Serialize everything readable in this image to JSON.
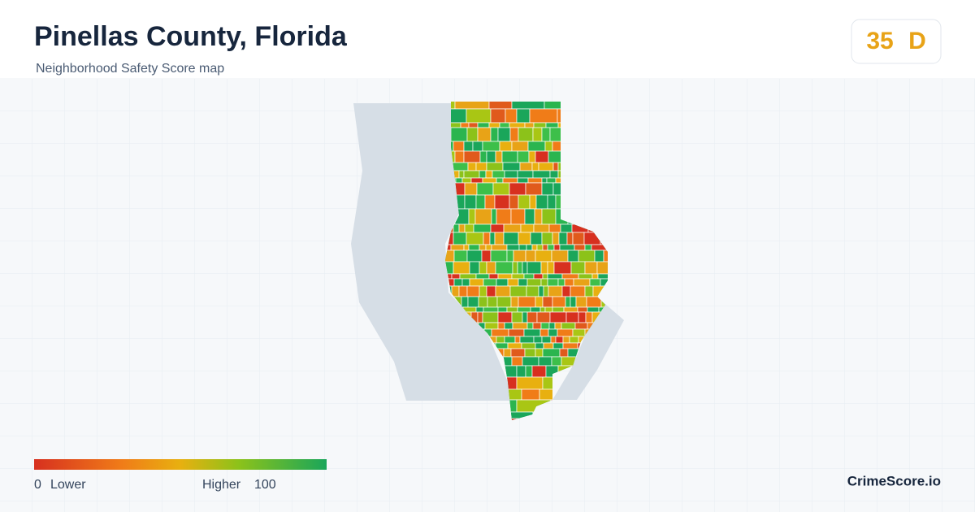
{
  "header": {
    "title": "Pinellas County, Florida",
    "subtitle": "Neighborhood Safety Score map"
  },
  "score": {
    "value": "35",
    "grade": "D"
  },
  "legend": {
    "min": "0",
    "min_label": "Lower",
    "max_label": "Higher",
    "max": "100"
  },
  "brand": "CrimeScore.io"
}
